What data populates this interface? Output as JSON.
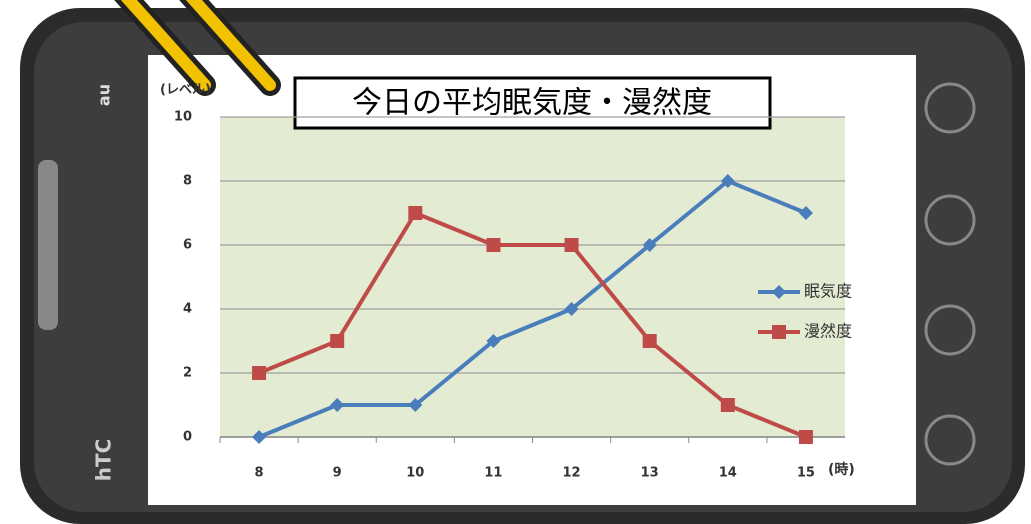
{
  "device": {
    "carrier": "au",
    "brand": "hTC"
  },
  "chart_data": {
    "type": "line",
    "title": "今日の平均眠気度・漫然度",
    "y_label": "(レベル)",
    "x_label": "(時)",
    "categories": [
      "8",
      "9",
      "10",
      "11",
      "12",
      "13",
      "14",
      "15"
    ],
    "series": [
      {
        "name": "眠気度",
        "color": "#4a7ebb",
        "marker": "diamond",
        "values": [
          0,
          1,
          1,
          3,
          4,
          6,
          8,
          7
        ]
      },
      {
        "name": "漫然度",
        "color": "#be4b48",
        "marker": "square",
        "values": [
          2,
          3,
          7,
          6,
          6,
          3,
          1,
          0
        ]
      }
    ],
    "ylim": [
      0,
      10
    ],
    "yticks": [
      0,
      2,
      4,
      6,
      8,
      10
    ],
    "grid": true,
    "legend": "right"
  }
}
